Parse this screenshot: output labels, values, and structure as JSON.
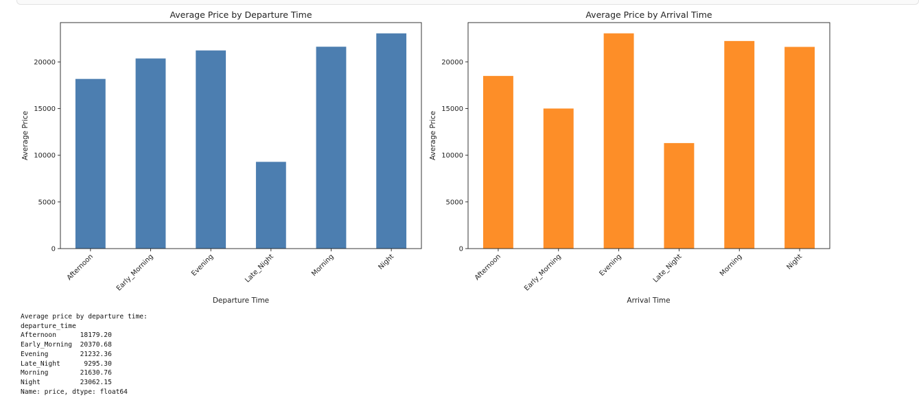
{
  "chart_data": [
    {
      "type": "bar",
      "title": "Average Price by Departure Time",
      "xlabel": "Departure Time",
      "ylabel": "Average Price",
      "categories": [
        "Afternoon",
        "Early_Morning",
        "Evening",
        "Late_Night",
        "Morning",
        "Night"
      ],
      "values": [
        18179.2,
        20370.68,
        21232.36,
        9295.3,
        21630.76,
        23062.15
      ],
      "ylim": [
        0,
        24215
      ],
      "yticks": [
        "0",
        "5000",
        "10000",
        "15000",
        "20000"
      ],
      "color": "#4c7eb0",
      "grid": false,
      "legend": "none"
    },
    {
      "type": "bar",
      "title": "Average Price by Arrival Time",
      "xlabel": "Arrival Time",
      "ylabel": "Average Price",
      "categories": [
        "Afternoon",
        "Early_Morning",
        "Evening",
        "Late_Night",
        "Morning",
        "Night"
      ],
      "values": [
        18490,
        15000,
        23050,
        11300,
        22230,
        21600
      ],
      "ylim": [
        0,
        24200
      ],
      "yticks": [
        "0",
        "5000",
        "10000",
        "15000",
        "20000"
      ],
      "color": "#fd8e28",
      "grid": false,
      "legend": "none"
    }
  ],
  "output": {
    "header": "Average price by departure time:",
    "index_name": "departure_time",
    "rows": [
      {
        "label": "Afternoon",
        "value": "18179.20"
      },
      {
        "label": "Early_Morning",
        "value": "20370.68"
      },
      {
        "label": "Evening",
        "value": "21232.36"
      },
      {
        "label": "Late_Night",
        "value": "9295.30"
      },
      {
        "label": "Morning",
        "value": "21630.76"
      },
      {
        "label": "Night",
        "value": "23062.15"
      }
    ],
    "footer": "Name: price, dtype: float64"
  }
}
